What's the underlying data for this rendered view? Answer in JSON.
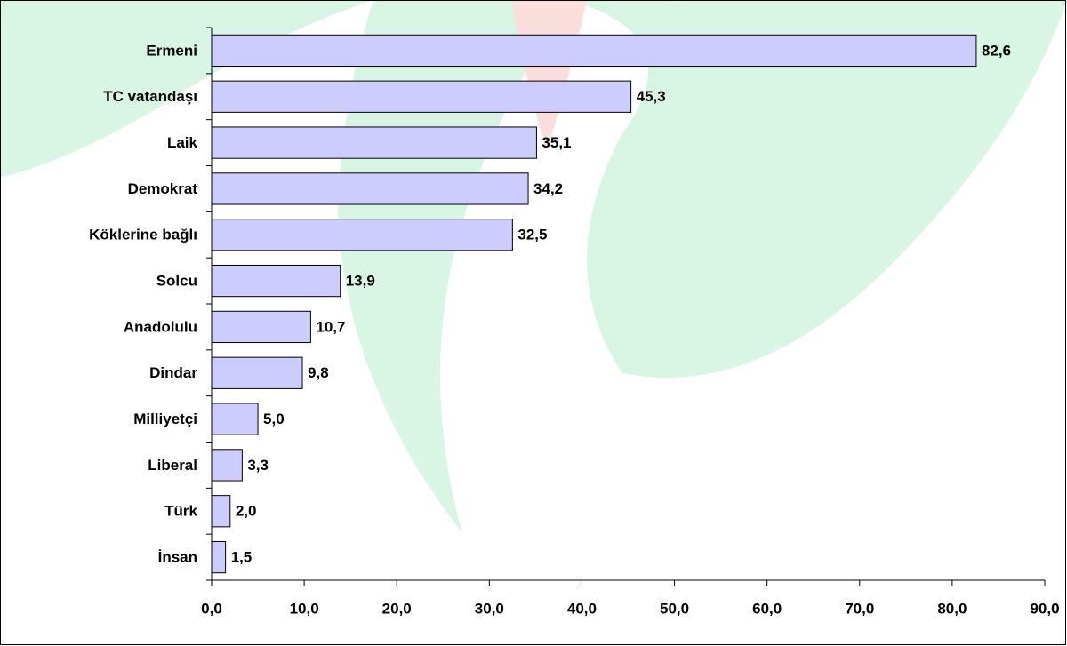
{
  "chart_data": {
    "type": "bar",
    "orientation": "horizontal",
    "categories": [
      "Ermeni",
      "TC vatandaşı",
      "Laik",
      "Demokrat",
      "Köklerine bağlı",
      "Solcu",
      "Anadolulu",
      "Dindar",
      "Milliyetçi",
      "Liberal",
      "Türk",
      "İnsan"
    ],
    "values": [
      82.6,
      45.3,
      35.1,
      34.2,
      32.5,
      13.9,
      10.7,
      9.8,
      5.0,
      3.3,
      2.0,
      1.5
    ],
    "value_labels": [
      "82,6",
      "45,3",
      "35,1",
      "34,2",
      "32,5",
      "13,9",
      "10,7",
      "9,8",
      "5,0",
      "3,3",
      "2,0",
      "1,5"
    ],
    "color": "#ccccff",
    "xlim": [
      0,
      90
    ],
    "xticks": [
      {
        "value": 0,
        "label": "0,0"
      },
      {
        "value": 10,
        "label": "10,0"
      },
      {
        "value": 20,
        "label": "20,0"
      },
      {
        "value": 30,
        "label": "30,0"
      },
      {
        "value": 40,
        "label": "40,0"
      },
      {
        "value": 50,
        "label": "50,0"
      },
      {
        "value": 60,
        "label": "60,0"
      },
      {
        "value": 70,
        "label": "70,0"
      },
      {
        "value": 80,
        "label": "80,0"
      },
      {
        "value": 90,
        "label": "90,0"
      }
    ],
    "grid": false
  }
}
